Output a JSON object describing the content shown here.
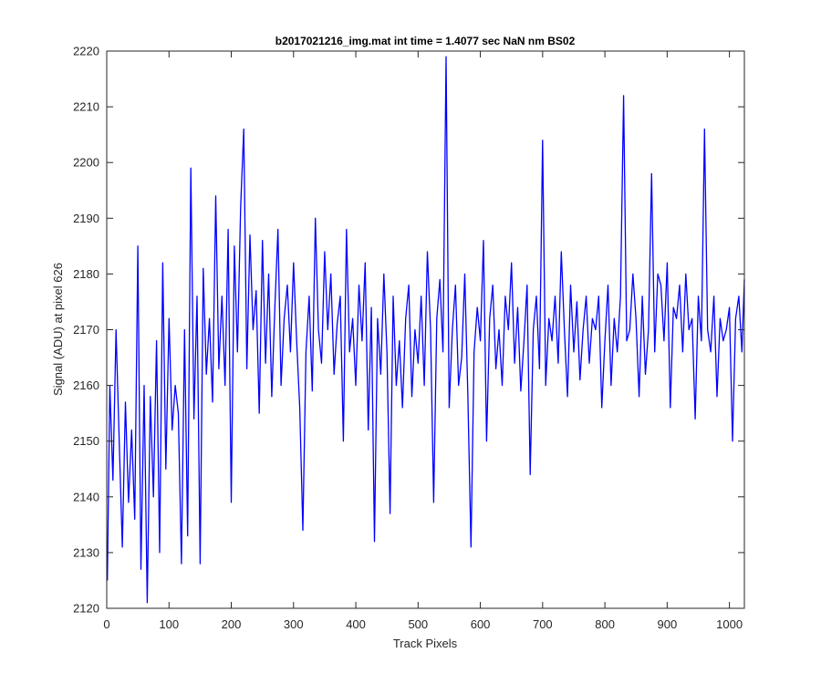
{
  "chart_data": {
    "type": "line",
    "title": "b2017021216_img.mat int time = 1.4077 sec  NaN nm BS02",
    "xlabel": "Track Pixels",
    "ylabel": "Signal (ADU) at pixel 626",
    "xlim": [
      0,
      1024
    ],
    "ylim": [
      2120,
      2220
    ],
    "xticks": [
      "0",
      "100",
      "200",
      "300",
      "400",
      "500",
      "600",
      "700",
      "800",
      "900",
      "1000"
    ],
    "yticks": [
      "2120",
      "2130",
      "2140",
      "2150",
      "2160",
      "2170",
      "2180",
      "2190",
      "2200",
      "2210",
      "2220"
    ],
    "grid": false,
    "line_color": "#0000ff",
    "series": [
      {
        "x": [
          1,
          5,
          10,
          15,
          20,
          25,
          30,
          35,
          40,
          45,
          50,
          55,
          60,
          65,
          70,
          75,
          80,
          85,
          90,
          95,
          100,
          105,
          110,
          115,
          120,
          125,
          130,
          135,
          140,
          145,
          150,
          155,
          160,
          165,
          170,
          175,
          180,
          185,
          190,
          195,
          200,
          205,
          210,
          215,
          220,
          225,
          230,
          235,
          240,
          245,
          250,
          255,
          260,
          265,
          270,
          275,
          280,
          285,
          290,
          295,
          300,
          305,
          310,
          315,
          320,
          325,
          330,
          335,
          340,
          345,
          350,
          355,
          360,
          365,
          370,
          375,
          380,
          385,
          390,
          395,
          400,
          405,
          410,
          415,
          420,
          425,
          430,
          435,
          440,
          445,
          450,
          455,
          460,
          465,
          470,
          475,
          480,
          485,
          490,
          495,
          500,
          505,
          510,
          515,
          520,
          525,
          530,
          535,
          540,
          545,
          550,
          555,
          560,
          565,
          570,
          575,
          580,
          585,
          590,
          595,
          600,
          605,
          610,
          615,
          620,
          625,
          630,
          635,
          640,
          645,
          650,
          655,
          660,
          665,
          670,
          675,
          680,
          685,
          690,
          695,
          700,
          705,
          710,
          715,
          720,
          725,
          730,
          735,
          740,
          745,
          750,
          755,
          760,
          765,
          770,
          775,
          780,
          785,
          790,
          795,
          800,
          805,
          810,
          815,
          820,
          825,
          830,
          835,
          840,
          845,
          850,
          855,
          860,
          865,
          870,
          875,
          880,
          885,
          890,
          895,
          900,
          905,
          910,
          915,
          920,
          925,
          930,
          935,
          940,
          945,
          950,
          955,
          960,
          965,
          970,
          975,
          980,
          985,
          990,
          995,
          1000,
          1005,
          1010,
          1015,
          1020,
          1024
        ],
        "y": [
          2125,
          2160,
          2143,
          2170,
          2150,
          2131,
          2157,
          2139,
          2152,
          2136,
          2185,
          2127,
          2160,
          2121,
          2158,
          2140,
          2168,
          2130,
          2182,
          2145,
          2172,
          2152,
          2160,
          2155,
          2128,
          2170,
          2133,
          2199,
          2154,
          2176,
          2128,
          2181,
          2162,
          2172,
          2157,
          2194,
          2163,
          2176,
          2160,
          2188,
          2139,
          2185,
          2166,
          2192,
          2206,
          2163,
          2187,
          2170,
          2177,
          2155,
          2186,
          2164,
          2180,
          2158,
          2174,
          2188,
          2160,
          2172,
          2178,
          2166,
          2182,
          2168,
          2156,
          2134,
          2166,
          2176,
          2159,
          2190,
          2170,
          2164,
          2184,
          2170,
          2180,
          2162,
          2171,
          2176,
          2150,
          2188,
          2166,
          2172,
          2160,
          2178,
          2168,
          2182,
          2152,
          2174,
          2132,
          2172,
          2162,
          2180,
          2166,
          2137,
          2176,
          2160,
          2168,
          2156,
          2172,
          2178,
          2158,
          2170,
          2164,
          2176,
          2160,
          2184,
          2170,
          2139,
          2172,
          2179,
          2166,
          2219,
          2156,
          2170,
          2178,
          2160,
          2165,
          2180,
          2158,
          2131,
          2166,
          2174,
          2168,
          2186,
          2150,
          2172,
          2178,
          2163,
          2170,
          2160,
          2176,
          2170,
          2182,
          2164,
          2174,
          2159,
          2168,
          2178,
          2144,
          2170,
          2176,
          2163,
          2204,
          2160,
          2172,
          2168,
          2176,
          2164,
          2184,
          2170,
          2158,
          2178,
          2166,
          2175,
          2161,
          2170,
          2176,
          2164,
          2172,
          2170,
          2176,
          2156,
          2168,
          2178,
          2160,
          2172,
          2166,
          2176,
          2212,
          2168,
          2170,
          2180,
          2172,
          2158,
          2176,
          2162,
          2170,
          2198,
          2166,
          2180,
          2178,
          2168,
          2182,
          2156,
          2174,
          2172,
          2178,
          2166,
          2180,
          2170,
          2172,
          2154,
          2176,
          2168,
          2206,
          2170,
          2166,
          2176,
          2158,
          2172,
          2168,
          2170,
          2174,
          2150,
          2172,
          2176,
          2166,
          2179
        ]
      }
    ]
  }
}
